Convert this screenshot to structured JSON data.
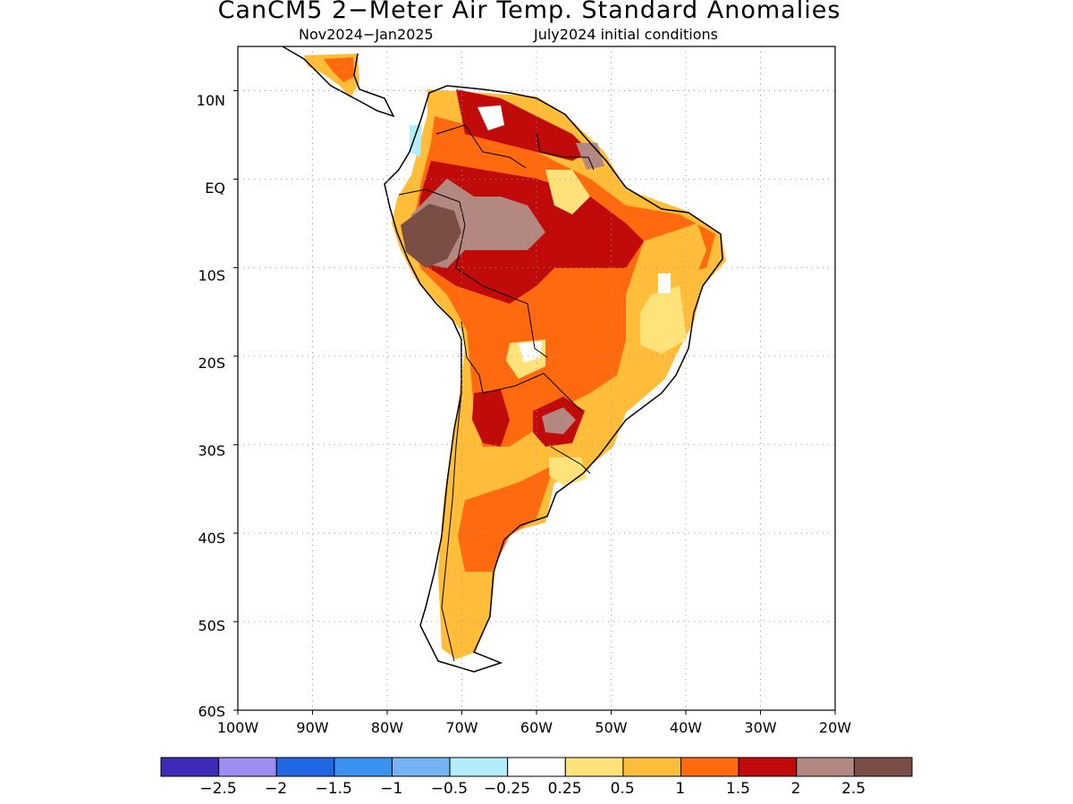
{
  "title": "CanCM5 2−Meter Air Temp. Standard Anomalies",
  "subtitle_period": "Nov2024−Jan2025",
  "subtitle_init": "July2024 initial conditions",
  "map": {
    "lon_range": [
      -100,
      -20
    ],
    "lat_range": [
      -60,
      15
    ],
    "x_ticks": [
      "100W",
      "90W",
      "80W",
      "70W",
      "60W",
      "50W",
      "40W",
      "30W",
      "20W"
    ],
    "y_ticks": [
      "10N",
      "EQ",
      "10S",
      "20S",
      "30S",
      "40S",
      "50S",
      "60S"
    ]
  },
  "colorbar": {
    "colors": [
      "#3a2bb8",
      "#9f8df2",
      "#1f67e3",
      "#3a92ef",
      "#75b3f5",
      "#b2eef9",
      "#ffffff",
      "#ffe27a",
      "#ffbd3a",
      "#ff6a0e",
      "#c10b0b",
      "#b38880",
      "#7a4e45"
    ],
    "labels": [
      "−2.5",
      "−2",
      "−1.5",
      "−1",
      "−0.5",
      "−0.25",
      "0.25",
      "0.5",
      "1",
      "1.5",
      "2",
      "2.5"
    ]
  }
}
